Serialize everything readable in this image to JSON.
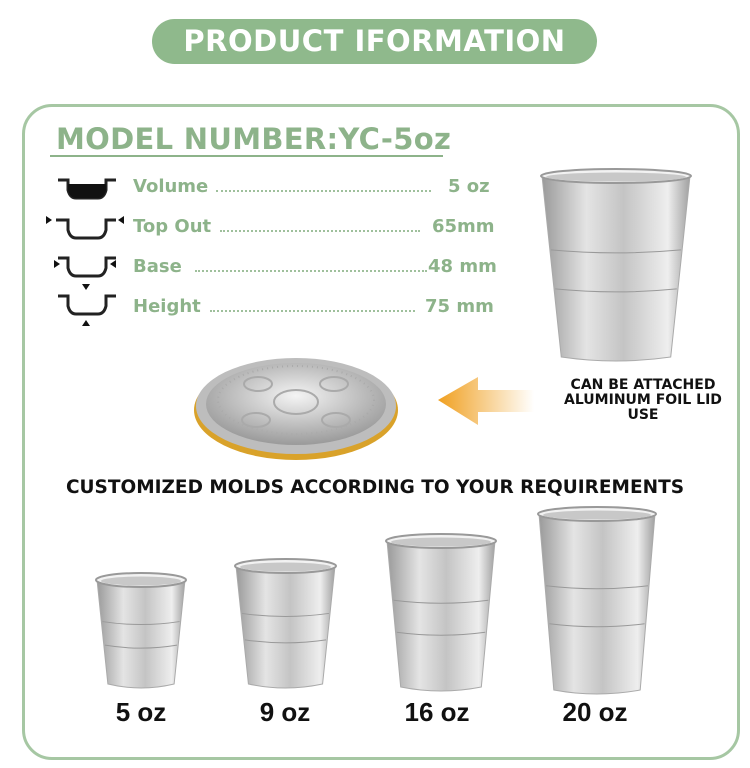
{
  "header": {
    "title": "PRODUCT IFORMATION"
  },
  "model": {
    "label": "MODEL NUMBER:YC-5oz"
  },
  "specs": [
    {
      "label": "Volume",
      "value": "5 oz",
      "icon": "cup-volume-icon"
    },
    {
      "label": "Top Out",
      "value": "65mm",
      "icon": "cup-top-width-icon"
    },
    {
      "label": "Base",
      "value": "48 mm",
      "icon": "cup-base-width-icon"
    },
    {
      "label": "Height",
      "value": "75 mm",
      "icon": "cup-height-icon"
    }
  ],
  "lid_note": {
    "line1": "CAN BE ATTACHED",
    "line2": "ALUMINUM FOIL LID",
    "line3": "USE"
  },
  "custom_heading": "CUSTOMIZED MOLDS ACCORDING TO YOUR REQUIREMENTS",
  "sizes": [
    "5 oz",
    "9 oz",
    "16 oz",
    "20 oz"
  ],
  "colors": {
    "brand_green": "#8fb98c",
    "text_green": "#8db38a",
    "arrow_orange": "#f0a020"
  }
}
